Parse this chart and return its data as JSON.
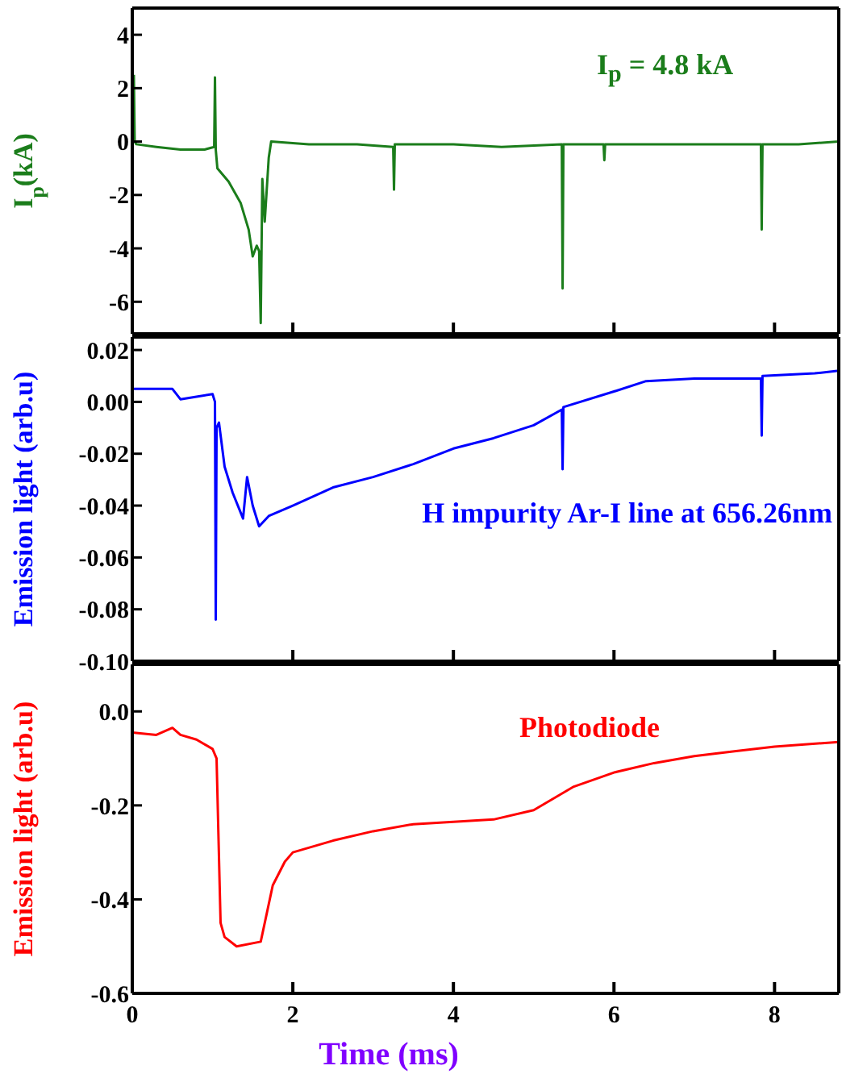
{
  "chart_data": [
    {
      "type": "line",
      "ylabel": "I$_{p}$(kA)",
      "annotations": [
        "I$_{p}$ = 4.8 kA"
      ],
      "xlim": [
        0,
        8.8
      ],
      "xticks": [
        {
          "value": 0,
          "label": null
        },
        {
          "value": 2,
          "label": null
        },
        {
          "value": 4,
          "label": null
        },
        {
          "value": 6,
          "label": null
        },
        {
          "value": 8,
          "label": null
        }
      ],
      "ylim": [
        -7.2,
        5
      ],
      "yticks": [
        -6,
        -4,
        -2,
        0,
        2,
        4
      ],
      "tick_labels": "y",
      "marker": "none",
      "line_style": "solid",
      "x": [
        0.02,
        0.03,
        0.05,
        0.3,
        0.6,
        0.9,
        1.02,
        1.03,
        1.04,
        1.06,
        1.2,
        1.35,
        1.45,
        1.5,
        1.55,
        1.58,
        1.6,
        1.62,
        1.65,
        1.7,
        1.73,
        2.2,
        2.8,
        3.25,
        3.26,
        3.27,
        4.0,
        4.6,
        5.35,
        5.36,
        5.37,
        5.87,
        5.88,
        5.89,
        6.5,
        7.2,
        7.83,
        7.84,
        7.85,
        8.3,
        8.8
      ],
      "series": [
        {
          "color": "#1b7d1b",
          "values": [
            2.5,
            0,
            -0.1,
            -0.2,
            -0.3,
            -0.3,
            -0.2,
            2.4,
            -0.3,
            -1.0,
            -1.5,
            -2.3,
            -3.3,
            -4.3,
            -3.9,
            -4.1,
            -6.8,
            -1.4,
            -3.0,
            -0.6,
            0,
            -0.1,
            -0.1,
            -0.2,
            -1.8,
            -0.1,
            -0.1,
            -0.2,
            -0.1,
            -5.5,
            -0.1,
            -0.1,
            -0.7,
            -0.1,
            -0.1,
            -0.1,
            -0.1,
            -3.3,
            -0.1,
            -0.1,
            0
          ]
        }
      ]
    },
    {
      "type": "line",
      "ylabel": "Emission light (arb.u)",
      "annotations": [
        "H impurity Ar-I line at 656.26nm"
      ],
      "xlim": [
        0,
        8.8
      ],
      "xticks": [
        {
          "value": 0,
          "label": null
        },
        {
          "value": 2,
          "label": null
        },
        {
          "value": 4,
          "label": null
        },
        {
          "value": 6,
          "label": null
        },
        {
          "value": 8,
          "label": null
        }
      ],
      "ylim": [
        -0.1,
        0.025
      ],
      "yticks": [
        {
          "value": -0.1,
          "label": "-0.10"
        },
        {
          "value": -0.08,
          "label": "-0.08"
        },
        {
          "value": -0.06,
          "label": "-0.06"
        },
        {
          "value": -0.04,
          "label": "-0.04"
        },
        {
          "value": -0.02,
          "label": "-0.02"
        },
        {
          "value": 0,
          "label": "0.00"
        },
        {
          "value": 0.02,
          "label": "0.02"
        }
      ],
      "tick_labels": "y",
      "marker": "none",
      "line_style": "solid",
      "x": [
        0,
        0.5,
        0.6,
        0.8,
        1.0,
        1.03,
        1.04,
        1.05,
        1.08,
        1.15,
        1.25,
        1.38,
        1.43,
        1.5,
        1.58,
        1.7,
        2.0,
        2.5,
        3.0,
        3.5,
        4.0,
        4.5,
        5.0,
        5.35,
        5.36,
        5.37,
        6.0,
        6.4,
        7.0,
        7.5,
        7.83,
        7.84,
        7.85,
        8.5,
        8.8
      ],
      "series": [
        {
          "color": "#0000ff",
          "values": [
            0.005,
            0.005,
            0.001,
            0.002,
            0.003,
            0.0,
            -0.084,
            -0.01,
            -0.008,
            -0.025,
            -0.035,
            -0.045,
            -0.029,
            -0.04,
            -0.048,
            -0.044,
            -0.04,
            -0.033,
            -0.029,
            -0.024,
            -0.018,
            -0.014,
            -0.009,
            -0.003,
            -0.026,
            -0.002,
            0.004,
            0.008,
            0.009,
            0.009,
            0.009,
            -0.013,
            0.01,
            0.011,
            0.012
          ]
        }
      ]
    },
    {
      "type": "line",
      "xlabel": "Time (ms)",
      "ylabel": "Emission light (arb.u)",
      "annotations": [
        "Photodiode"
      ],
      "xlim": [
        0,
        8.8
      ],
      "xticks": [
        0,
        2,
        4,
        6,
        8
      ],
      "ylim": [
        -0.6,
        0.1
      ],
      "yticks": [
        -0.6,
        -0.4,
        -0.2,
        {
          "value": 0,
          "label": "0.0"
        }
      ],
      "marker": "none",
      "line_style": "solid",
      "x": [
        0,
        0.3,
        0.5,
        0.6,
        0.8,
        1.0,
        1.05,
        1.1,
        1.15,
        1.3,
        1.6,
        1.65,
        1.75,
        1.9,
        2.0,
        2.5,
        3.0,
        3.5,
        4.0,
        4.5,
        5.0,
        5.5,
        6.0,
        6.5,
        7.0,
        7.5,
        8.0,
        8.8
      ],
      "series": [
        {
          "color": "#ff0000",
          "values": [
            -0.045,
            -0.05,
            -0.035,
            -0.05,
            -0.06,
            -0.08,
            -0.1,
            -0.45,
            -0.48,
            -0.5,
            -0.49,
            -0.45,
            -0.37,
            -0.32,
            -0.3,
            -0.275,
            -0.255,
            -0.24,
            -0.235,
            -0.23,
            -0.21,
            -0.16,
            -0.13,
            -0.11,
            -0.095,
            -0.085,
            -0.075,
            -0.065
          ]
        }
      ]
    }
  ]
}
